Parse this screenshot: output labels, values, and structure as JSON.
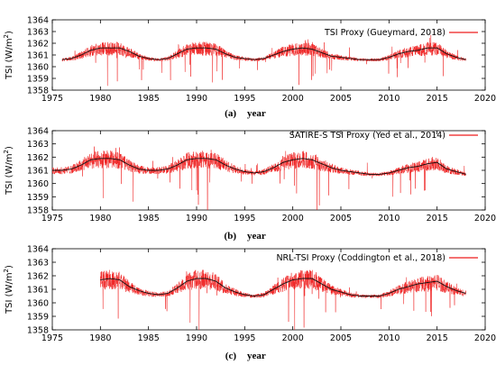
{
  "chart_data": [
    {
      "type": "line",
      "panel_label": "(a)",
      "xlabel": "year",
      "ylabel": "TSI (W/m²)",
      "legend": "TSI Proxy (Gueymard, 2018)",
      "legend_position": "top-right",
      "grid": false,
      "xlim": [
        1975,
        2020
      ],
      "ylim": [
        1358,
        1364
      ],
      "x_ticks": [
        1975,
        1980,
        1985,
        1990,
        1995,
        2000,
        2005,
        2010,
        2015,
        2020
      ],
      "y_ticks": [
        1358,
        1359,
        1360,
        1361,
        1362,
        1363,
        1364
      ],
      "series": [
        {
          "name": "TSI Proxy (Gueymard, 2018)",
          "color": "#ee1c1c",
          "x_range": [
            1976,
            2018
          ],
          "smooth": {
            "x": [
              1976,
              1977,
              1978,
              1979,
              1980,
              1981,
              1982,
              1983,
              1984,
              1985,
              1986,
              1987,
              1988,
              1989,
              1990,
              1991,
              1992,
              1993,
              1994,
              1995,
              1996,
              1997,
              1998,
              1999,
              2000,
              2001,
              2002,
              2003,
              2004,
              2005,
              2006,
              2007,
              2008,
              2009,
              2010,
              2011,
              2012,
              2013,
              2014,
              2015,
              2016,
              2017,
              2018
            ],
            "y": [
              1360.6,
              1360.7,
              1361.0,
              1361.4,
              1361.6,
              1361.6,
              1361.6,
              1361.3,
              1360.9,
              1360.7,
              1360.6,
              1360.7,
              1361.1,
              1361.5,
              1361.6,
              1361.6,
              1361.5,
              1361.1,
              1360.8,
              1360.7,
              1360.6,
              1360.7,
              1361.0,
              1361.3,
              1361.5,
              1361.6,
              1361.5,
              1361.2,
              1360.9,
              1360.8,
              1360.7,
              1360.6,
              1360.6,
              1360.6,
              1360.8,
              1361.1,
              1361.3,
              1361.4,
              1361.6,
              1361.6,
              1361.1,
              1360.8,
              1360.6
            ]
          }
        }
      ]
    },
    {
      "type": "line",
      "panel_label": "(b)",
      "xlabel": "year",
      "ylabel": "TSI (W/m²)",
      "legend": "SATIRE-S TSI Proxy (Yeo et al., 2014)",
      "legend_position": "top-right",
      "grid": false,
      "xlim": [
        1975,
        2020
      ],
      "ylim": [
        1358,
        1364
      ],
      "x_ticks": [
        1975,
        1980,
        1985,
        1990,
        1995,
        2000,
        2005,
        2010,
        2015,
        2020
      ],
      "y_ticks": [
        1358,
        1359,
        1360,
        1361,
        1362,
        1363,
        1364
      ],
      "series": [
        {
          "name": "SATIRE-S TSI Proxy (Yeo et al., 2014)",
          "color": "#ee1c1c",
          "x_range": [
            1975,
            2018
          ],
          "smooth": {
            "x": [
              1975,
              1976,
              1977,
              1978,
              1979,
              1980,
              1981,
              1982,
              1983,
              1984,
              1985,
              1986,
              1987,
              1988,
              1989,
              1990,
              1991,
              1992,
              1993,
              1994,
              1995,
              1996,
              1997,
              1998,
              1999,
              2000,
              2001,
              2002,
              2003,
              2004,
              2005,
              2006,
              2007,
              2008,
              2009,
              2010,
              2011,
              2012,
              2013,
              2014,
              2015,
              2016,
              2017,
              2018
            ],
            "y": [
              1361.0,
              1361.0,
              1361.1,
              1361.4,
              1361.8,
              1361.9,
              1361.9,
              1361.8,
              1361.4,
              1361.1,
              1361.0,
              1361.0,
              1361.1,
              1361.4,
              1361.8,
              1361.9,
              1361.9,
              1361.8,
              1361.4,
              1361.1,
              1360.9,
              1360.8,
              1360.9,
              1361.2,
              1361.6,
              1361.8,
              1361.9,
              1361.8,
              1361.5,
              1361.2,
              1361.0,
              1360.9,
              1360.8,
              1360.7,
              1360.7,
              1360.8,
              1361.0,
              1361.2,
              1361.3,
              1361.5,
              1361.6,
              1361.1,
              1360.9,
              1360.7
            ]
          }
        }
      ]
    },
    {
      "type": "line",
      "panel_label": "(c)",
      "xlabel": "year",
      "ylabel": "TSI (W/m²)",
      "legend": "NRL-TSI Proxy (Coddington et al., 2018)",
      "legend_position": "top-right",
      "grid": false,
      "xlim": [
        1975,
        2020
      ],
      "ylim": [
        1358,
        1364
      ],
      "x_ticks": [
        1975,
        1980,
        1985,
        1990,
        1995,
        2000,
        2005,
        2010,
        2015,
        2020
      ],
      "y_ticks": [
        1358,
        1359,
        1360,
        1361,
        1362,
        1363,
        1364
      ],
      "series": [
        {
          "name": "NRL-TSI Proxy (Coddington et al., 2018)",
          "color": "#ee1c1c",
          "x_range": [
            1980,
            2018
          ],
          "smooth": {
            "x": [
              1980,
              1981,
              1982,
              1983,
              1984,
              1985,
              1986,
              1987,
              1988,
              1989,
              1990,
              1991,
              1992,
              1993,
              1994,
              1995,
              1996,
              1997,
              1998,
              1999,
              2000,
              2001,
              2002,
              2003,
              2004,
              2005,
              2006,
              2007,
              2008,
              2009,
              2010,
              2011,
              2012,
              2013,
              2014,
              2015,
              2016,
              2017,
              2018
            ],
            "y": [
              1361.7,
              1361.8,
              1361.7,
              1361.2,
              1360.9,
              1360.7,
              1360.6,
              1360.7,
              1361.1,
              1361.6,
              1361.8,
              1361.8,
              1361.6,
              1361.1,
              1360.8,
              1360.6,
              1360.5,
              1360.6,
              1361.0,
              1361.4,
              1361.7,
              1361.8,
              1361.8,
              1361.4,
              1361.0,
              1360.8,
              1360.6,
              1360.5,
              1360.5,
              1360.5,
              1360.7,
              1361.0,
              1361.2,
              1361.4,
              1361.5,
              1361.6,
              1361.2,
              1360.9,
              1360.7
            ]
          }
        }
      ]
    }
  ]
}
